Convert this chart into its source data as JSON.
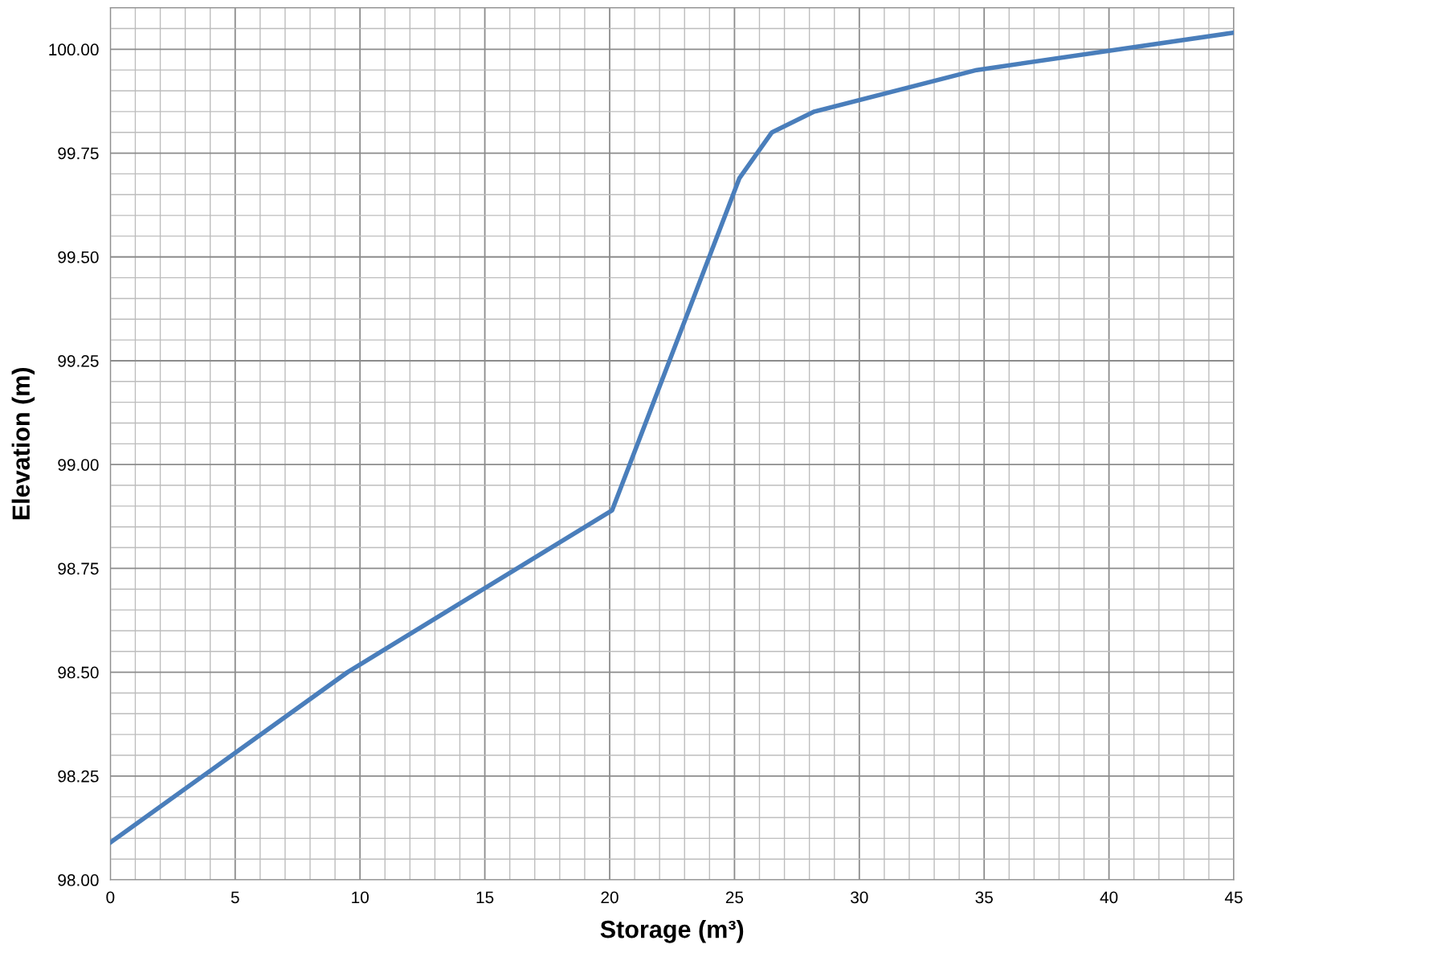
{
  "chart_data": {
    "type": "line",
    "xlabel": "Storage (m³)",
    "ylabel": "Elevation (m)",
    "x": [
      0,
      9.5,
      20.1,
      25.2,
      26.5,
      28.2,
      34.7,
      45
    ],
    "series": [
      {
        "color": "#4a7ebb",
        "values": [
          98.09,
          98.5,
          98.89,
          99.69,
          99.8,
          99.85,
          99.95,
          100.04
        ]
      }
    ],
    "xlim": [
      0,
      45
    ],
    "xticks": [
      0,
      5,
      10,
      15,
      20,
      25,
      30,
      35,
      40,
      45
    ],
    "ylim": [
      98.0,
      100.1
    ],
    "yticks": [
      {
        "value": 98.0,
        "label": "98.00"
      },
      {
        "value": 98.25,
        "label": "98.25"
      },
      {
        "value": 98.5,
        "label": "98.50"
      },
      {
        "value": 98.75,
        "label": "98.75"
      },
      {
        "value": 99.0,
        "label": "99.00"
      },
      {
        "value": 99.25,
        "label": "99.25"
      },
      {
        "value": 99.5,
        "label": "99.50"
      },
      {
        "value": 99.75,
        "label": "99.75"
      },
      {
        "value": 100.0,
        "label": "100.00"
      }
    ],
    "grid": true,
    "legend": false,
    "marker": "none",
    "line_style": "solid"
  }
}
